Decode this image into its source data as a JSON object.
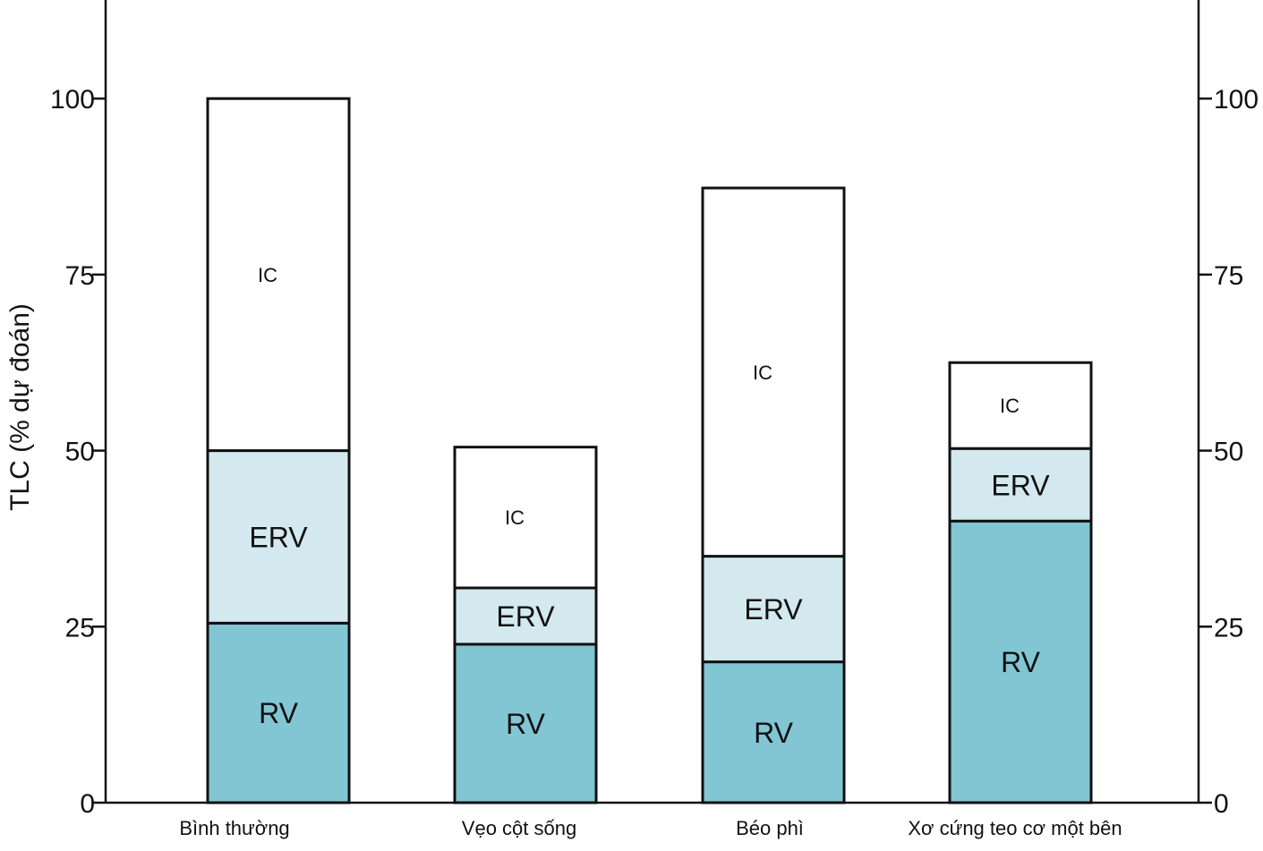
{
  "chart_data": {
    "type": "bar",
    "stacked": true,
    "title": "",
    "xlabel": "",
    "ylabel": "TLC (% dự đoán)",
    "ylim": [
      0,
      114
    ],
    "yticks": [
      0,
      25,
      50,
      75,
      100
    ],
    "categories": [
      "Bình thường",
      "Vẹo cột sống",
      "Béo phì",
      "Xơ cứng teo cơ một bên"
    ],
    "series": [
      {
        "name": "RV",
        "color": "#82c6d4",
        "values": [
          25.5,
          22.5,
          20,
          40
        ]
      },
      {
        "name": "ERV",
        "color": "#d3e9ef",
        "values": [
          24.5,
          8,
          15,
          10.3
        ]
      },
      {
        "name": "IC",
        "color": "#ffffff",
        "values": [
          50,
          20,
          52.3,
          12.2
        ]
      }
    ],
    "grid": false,
    "legend": "none"
  }
}
